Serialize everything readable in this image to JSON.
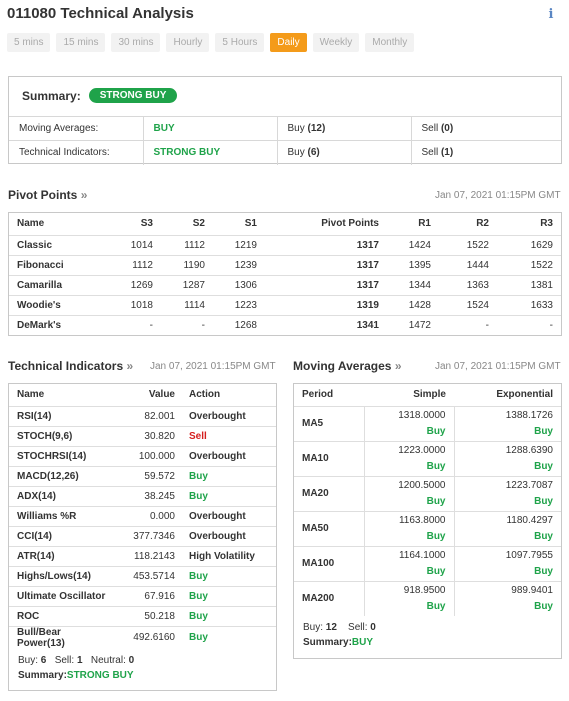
{
  "header": {
    "title": "011080 Technical Analysis",
    "info_icon": "info-icon"
  },
  "tabs": [
    {
      "label": "5 mins",
      "active": false
    },
    {
      "label": "15 mins",
      "active": false
    },
    {
      "label": "30 mins",
      "active": false
    },
    {
      "label": "Hourly",
      "active": false
    },
    {
      "label": "5 Hours",
      "active": false
    },
    {
      "label": "Daily",
      "active": true
    },
    {
      "label": "Weekly",
      "active": false
    },
    {
      "label": "Monthly",
      "active": false
    }
  ],
  "summary": {
    "label": "Summary:",
    "badge": "STRONG BUY",
    "rows": [
      {
        "name": "Moving Averages:",
        "value": "BUY",
        "buy": "Buy",
        "buy_count": "(12)",
        "sell": "Sell",
        "sell_count": "(0)"
      },
      {
        "name": "Technical Indicators:",
        "value": "STRONG BUY",
        "buy": "Buy",
        "buy_count": "(6)",
        "sell": "Sell",
        "sell_count": "(1)"
      }
    ]
  },
  "pivot": {
    "title": "Pivot Points",
    "date": "Jan 07, 2021 01:15PM GMT",
    "headers": [
      "Name",
      "S3",
      "S2",
      "S1",
      "Pivot Points",
      "R1",
      "R2",
      "R3"
    ],
    "rows": [
      [
        "Classic",
        "1014",
        "1112",
        "1219",
        "1317",
        "1424",
        "1522",
        "1629"
      ],
      [
        "Fibonacci",
        "1112",
        "1190",
        "1239",
        "1317",
        "1395",
        "1444",
        "1522"
      ],
      [
        "Camarilla",
        "1269",
        "1287",
        "1306",
        "1317",
        "1344",
        "1363",
        "1381"
      ],
      [
        "Woodie's",
        "1018",
        "1114",
        "1223",
        "1319",
        "1428",
        "1524",
        "1633"
      ],
      [
        "DeMark's",
        "-",
        "-",
        "1268",
        "1341",
        "1472",
        "-",
        "-"
      ]
    ]
  },
  "technical": {
    "title": "Technical Indicators",
    "date": "Jan 07, 2021 01:15PM GMT",
    "headers": [
      "Name",
      "Value",
      "Action"
    ],
    "rows": [
      {
        "name": "RSI(14)",
        "value": "82.001",
        "action": "Overbought",
        "tone": "bold"
      },
      {
        "name": "STOCH(9,6)",
        "value": "30.820",
        "action": "Sell",
        "tone": "red"
      },
      {
        "name": "STOCHRSI(14)",
        "value": "100.000",
        "action": "Overbought",
        "tone": "bold"
      },
      {
        "name": "MACD(12,26)",
        "value": "59.572",
        "action": "Buy",
        "tone": "green"
      },
      {
        "name": "ADX(14)",
        "value": "38.245",
        "action": "Buy",
        "tone": "green"
      },
      {
        "name": "Williams %R",
        "value": "0.000",
        "action": "Overbought",
        "tone": "bold"
      },
      {
        "name": "CCI(14)",
        "value": "377.7346",
        "action": "Overbought",
        "tone": "bold"
      },
      {
        "name": "ATR(14)",
        "value": "118.2143",
        "action": "High Volatility",
        "tone": "bold"
      },
      {
        "name": "Highs/Lows(14)",
        "value": "453.5714",
        "action": "Buy",
        "tone": "green"
      },
      {
        "name": "Ultimate Oscillator",
        "value": "67.916",
        "action": "Buy",
        "tone": "green"
      },
      {
        "name": "ROC",
        "value": "50.218",
        "action": "Buy",
        "tone": "green"
      },
      {
        "name": "Bull/Bear Power(13)",
        "value": "492.6160",
        "action": "Buy",
        "tone": "green"
      }
    ],
    "footer": {
      "buy_label": "Buy:",
      "buy_value": "6",
      "sell_label": "Sell:",
      "sell_value": "1",
      "neutral_label": "Neutral:",
      "neutral_value": "0",
      "summary_label": "Summary:",
      "summary_value": "STRONG BUY"
    }
  },
  "moving": {
    "title": "Moving Averages",
    "date": "Jan 07, 2021 01:15PM GMT",
    "headers": [
      "Period",
      "Simple",
      "Exponential"
    ],
    "rows": [
      {
        "period": "MA5",
        "simple": "1318.0000",
        "simple_action": "Buy",
        "exp": "1388.1726",
        "exp_action": "Buy"
      },
      {
        "period": "MA10",
        "simple": "1223.0000",
        "simple_action": "Buy",
        "exp": "1288.6390",
        "exp_action": "Buy"
      },
      {
        "period": "MA20",
        "simple": "1200.5000",
        "simple_action": "Buy",
        "exp": "1223.7087",
        "exp_action": "Buy"
      },
      {
        "period": "MA50",
        "simple": "1163.8000",
        "simple_action": "Buy",
        "exp": "1180.4297",
        "exp_action": "Buy"
      },
      {
        "period": "MA100",
        "simple": "1164.1000",
        "simple_action": "Buy",
        "exp": "1097.7955",
        "exp_action": "Buy"
      },
      {
        "period": "MA200",
        "simple": "918.9500",
        "simple_action": "Buy",
        "exp": "989.9401",
        "exp_action": "Buy"
      }
    ],
    "footer": {
      "buy_label": "Buy:",
      "buy_value": "12",
      "sell_label": "Sell:",
      "sell_value": "0",
      "summary_label": "Summary:",
      "summary_value": "BUY"
    }
  },
  "colors": {
    "buy": "#1fa34a",
    "sell": "#d51f1f",
    "active_tab": "#f49b1a"
  }
}
